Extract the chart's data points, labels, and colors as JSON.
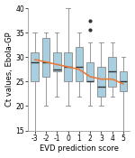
{
  "scores": [
    -3,
    -2,
    -1,
    0,
    1,
    2,
    3,
    4,
    5
  ],
  "boxes": [
    {
      "score": -3,
      "whislo": 15,
      "q1": 25,
      "med": 29,
      "q3": 31,
      "whishi": 35,
      "fliers": []
    },
    {
      "score": -2,
      "whislo": 20,
      "q1": 26,
      "med": 29,
      "q3": 34,
      "whishi": 35,
      "fliers": []
    },
    {
      "score": -1,
      "whislo": 22,
      "q1": 27,
      "med": 27.5,
      "q3": 31,
      "whishi": 35,
      "fliers": []
    },
    {
      "score": 0,
      "whislo": 20,
      "q1": 25,
      "med": 28,
      "q3": 31,
      "whishi": 40,
      "fliers": []
    },
    {
      "score": 1,
      "whislo": 22,
      "q1": 25,
      "med": 28,
      "q3": 32,
      "whishi": 35,
      "fliers": []
    },
    {
      "score": 2,
      "whislo": 20,
      "q1": 25,
      "med": 25,
      "q3": 29,
      "whishi": 33,
      "fliers": [
        35.5,
        37.5
      ]
    },
    {
      "score": 3,
      "whislo": 20,
      "q1": 22,
      "med": 24,
      "q3": 28,
      "whishi": 33,
      "fliers": []
    },
    {
      "score": 4,
      "whislo": 22,
      "q1": 24,
      "med": 27,
      "q3": 30,
      "whishi": 33,
      "fliers": []
    },
    {
      "score": 5,
      "whislo": 15,
      "q1": 23,
      "med": 25,
      "q3": 27,
      "whishi": 30,
      "fliers": []
    }
  ],
  "orange_line_x": [
    -3,
    -2,
    -1,
    0,
    1,
    2,
    3,
    4,
    5
  ],
  "orange_line_y": [
    29.5,
    29.0,
    28.5,
    28.0,
    27.5,
    26.0,
    25.5,
    25.5,
    24.5
  ],
  "box_facecolor": "#a8cfe0",
  "box_edgecolor": "#888888",
  "median_color": "#333333",
  "whisker_color": "#888888",
  "cap_color": "#888888",
  "flier_color": "#333333",
  "orange_color": "#e87a3a",
  "ylim": [
    15,
    40
  ],
  "yticks": [
    15,
    20,
    25,
    30,
    35,
    40
  ],
  "xlabel": "EVD prediction score",
  "ylabel": "Ct values, Ebola-GP",
  "xlabel_fontsize": 6,
  "ylabel_fontsize": 6,
  "tick_fontsize": 5.5,
  "background_color": "#ffffff"
}
